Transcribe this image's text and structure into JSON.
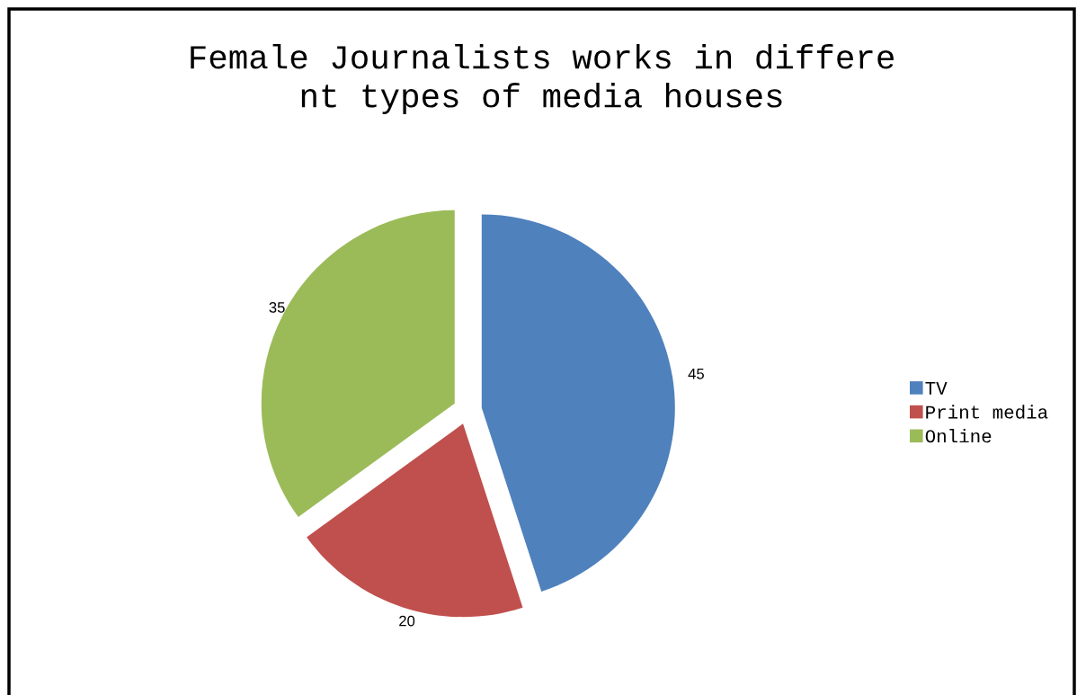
{
  "chart_data": {
    "type": "pie",
    "title": "Female Journalists works in differe\nnt types of media houses",
    "categories": [
      "TV",
      "Print media",
      "Online"
    ],
    "values": [
      45,
      20,
      35
    ],
    "colors": [
      "#4f81bd",
      "#c0504d",
      "#9bbb59"
    ],
    "data_labels": true,
    "legend": "right"
  }
}
